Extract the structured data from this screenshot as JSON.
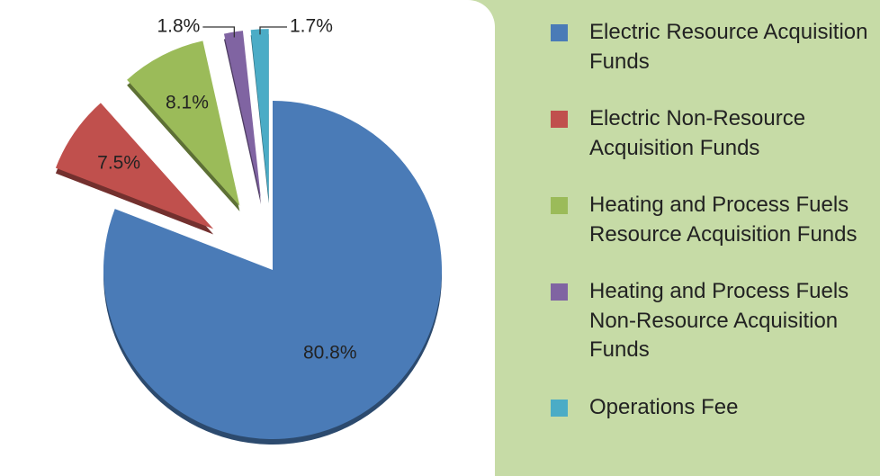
{
  "chart_data": {
    "type": "pie",
    "categories": [
      "Electric Resource Acquisition Funds",
      "Electric Non-Resource Acquisition Funds",
      "Heating and Process Fuels Resource Acquisition Funds",
      "Heating and Process Fuels Non-Resource Acquisition Funds",
      "Operations Fee"
    ],
    "values": [
      80.8,
      7.5,
      8.1,
      1.8,
      1.7
    ],
    "value_labels": [
      "80.8%",
      "7.5%",
      "8.1%",
      "1.8%",
      "1.7%"
    ],
    "colors": [
      "#4a7bb7",
      "#c0504d",
      "#9bbb59",
      "#8064a2",
      "#4bacc6"
    ],
    "legend": "right"
  }
}
